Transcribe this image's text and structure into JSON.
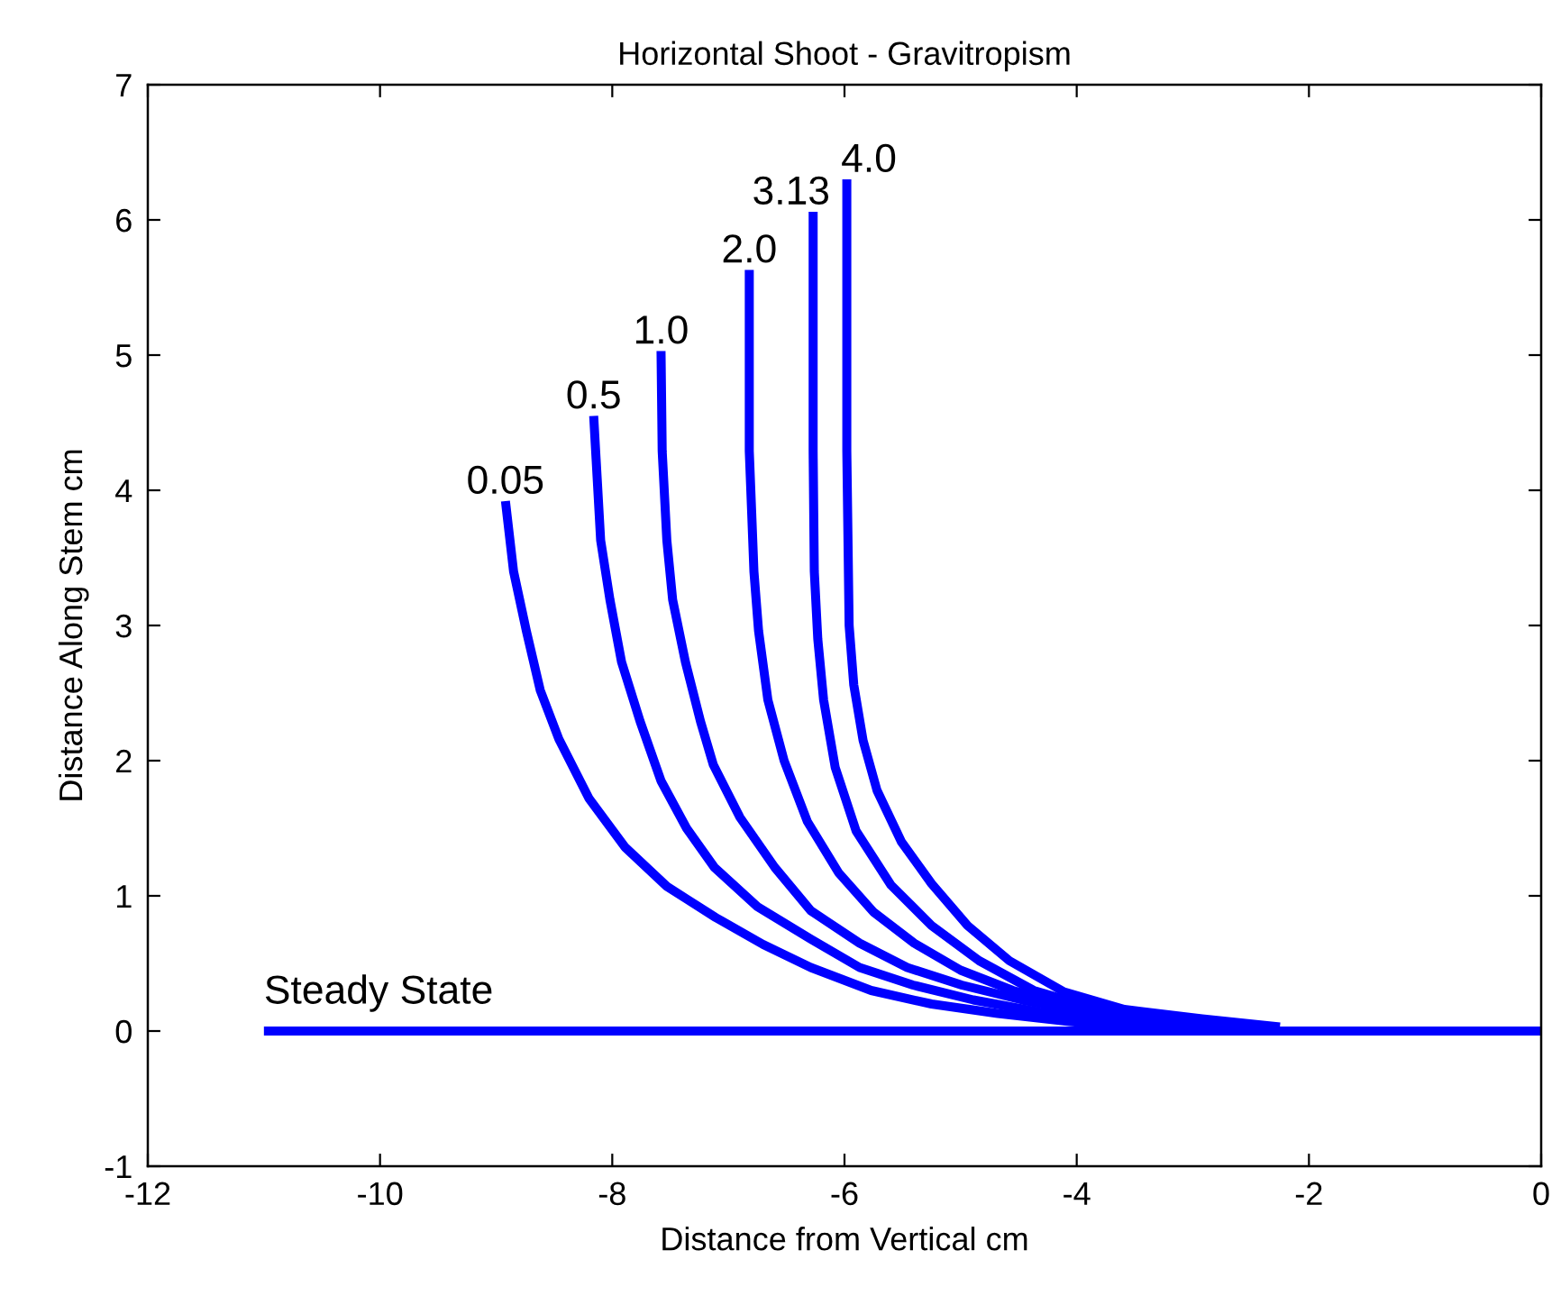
{
  "chart_data": {
    "type": "line",
    "title": "Horizontal Shoot - Gravitropism",
    "xlabel": "Distance from Vertical cm",
    "ylabel": "Distance Along Stem cm",
    "xlim": [
      -12,
      0
    ],
    "ylim": [
      -1,
      7
    ],
    "xticks": [
      -12,
      -10,
      -8,
      -6,
      -4,
      -2,
      0
    ],
    "yticks": [
      -1,
      0,
      1,
      2,
      3,
      4,
      5,
      6,
      7
    ],
    "line_style": "solid",
    "series": [
      {
        "name": "Steady State",
        "color": "#0000ff",
        "x": [
          -11,
          0
        ],
        "values": [
          0,
          0
        ]
      },
      {
        "name": "0.05",
        "color": "#0000ff",
        "x": [
          -8.92,
          -8.85,
          -8.74,
          -8.62,
          -8.46,
          -8.2,
          -7.89,
          -7.53,
          -7.11,
          -6.7,
          -6.29,
          -5.77,
          -5.25,
          -4.68,
          -4.06,
          -3.5,
          -3.0
        ],
        "values": [
          3.92,
          3.4,
          2.96,
          2.52,
          2.16,
          1.72,
          1.36,
          1.07,
          0.84,
          0.64,
          0.47,
          0.3,
          0.2,
          0.13,
          0.07,
          0.03,
          0.01
        ]
      },
      {
        "name": "0.5",
        "color": "#0000ff",
        "x": [
          -8.16,
          -8.13,
          -8.1,
          -8.02,
          -7.92,
          -7.76,
          -7.58,
          -7.36,
          -7.12,
          -6.75,
          -6.29,
          -5.87,
          -5.41,
          -4.89,
          -4.32,
          -3.7,
          -3.2,
          -2.7
        ],
        "values": [
          4.55,
          4.09,
          3.63,
          3.19,
          2.73,
          2.29,
          1.85,
          1.5,
          1.21,
          0.92,
          0.68,
          0.47,
          0.34,
          0.23,
          0.14,
          0.08,
          0.03,
          0.01
        ]
      },
      {
        "name": "1.0",
        "color": "#0000ff",
        "x": [
          -7.58,
          -7.57,
          -7.53,
          -7.48,
          -7.37,
          -7.24,
          -7.13,
          -6.9,
          -6.6,
          -6.29,
          -5.87,
          -5.46,
          -4.99,
          -4.47,
          -3.96,
          -3.39,
          -2.9,
          -2.5
        ],
        "values": [
          5.03,
          4.29,
          3.63,
          3.19,
          2.73,
          2.29,
          1.97,
          1.58,
          1.21,
          0.89,
          0.65,
          0.47,
          0.34,
          0.23,
          0.14,
          0.07,
          0.03,
          0.01
        ]
      },
      {
        "name": "2.0",
        "color": "#0000ff",
        "x": [
          -6.82,
          -6.82,
          -6.8,
          -6.78,
          -6.74,
          -6.66,
          -6.52,
          -6.32,
          -6.05,
          -5.75,
          -5.4,
          -5.0,
          -4.55,
          -4.05,
          -3.5,
          -2.9,
          -2.35
        ],
        "values": [
          5.63,
          4.29,
          3.85,
          3.4,
          2.96,
          2.45,
          2.0,
          1.55,
          1.17,
          0.88,
          0.65,
          0.45,
          0.3,
          0.19,
          0.11,
          0.05,
          0.01
        ]
      },
      {
        "name": "3.13",
        "color": "#0000ff",
        "x": [
          -6.27,
          -6.27,
          -6.26,
          -6.23,
          -6.18,
          -6.08,
          -5.9,
          -5.6,
          -5.25,
          -4.84,
          -4.37,
          -3.85,
          -3.18,
          -2.67,
          -2.33
        ],
        "values": [
          6.06,
          4.29,
          3.4,
          2.9,
          2.45,
          1.95,
          1.48,
          1.08,
          0.78,
          0.52,
          0.3,
          0.17,
          0.09,
          0.04,
          0.01
        ]
      },
      {
        "name": "4.0",
        "color": "#0000ff",
        "x": [
          -5.98,
          -5.98,
          -5.96,
          -5.92,
          -5.84,
          -5.72,
          -5.51,
          -5.25,
          -4.94,
          -4.58,
          -4.11,
          -3.59,
          -2.92,
          -2.25
        ],
        "values": [
          6.3,
          4.29,
          3.0,
          2.56,
          2.15,
          1.78,
          1.4,
          1.09,
          0.78,
          0.52,
          0.29,
          0.16,
          0.09,
          0.03
        ]
      }
    ]
  }
}
